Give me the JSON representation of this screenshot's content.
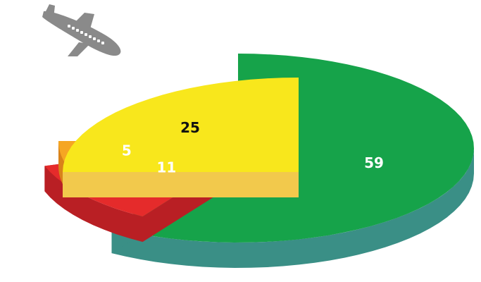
{
  "chart_data": {
    "type": "pie",
    "style": "3d-exploded",
    "values": [
      59,
      11,
      5,
      25
    ],
    "colors": {
      "slices": [
        "#16a34a",
        "#e52b2b",
        "#f5a623",
        "#f8e71c"
      ],
      "sides": [
        "#3a8f86",
        "#b91f24",
        "#d9821a",
        "#f2c94c"
      ],
      "labels": [
        "#ffffff",
        "#ffffff",
        "#ffffff",
        "#111111"
      ]
    },
    "icon": {
      "name": "airplane-icon",
      "color": "#8a8a8a"
    }
  }
}
